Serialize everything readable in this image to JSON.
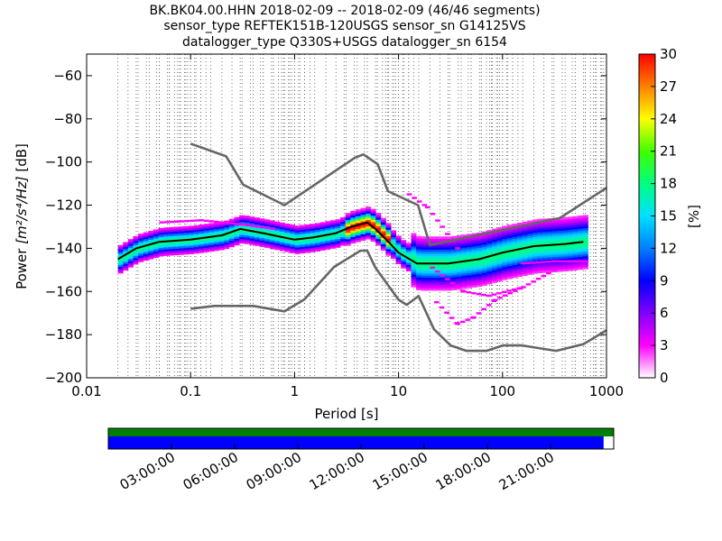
{
  "title_lines": [
    "BK.BK04.00.HHN   2018-02-09 -- 2018-02-09  (46/46 segments)",
    "sensor_type REFTEK151B-120USGS sensor_sn G14125VS",
    "datalogger_type Q330S+USGS datalogger_sn 6154"
  ],
  "chart_data": {
    "type": "heatmap",
    "xlabel": "Period [s]",
    "ylabel_prefix": "Power ",
    "ylabel_unit": "[m²/s⁴/Hz]",
    "ylabel_suffix": " [dB]",
    "x_scale": "log",
    "xlim": [
      0.01,
      1000
    ],
    "ylim": [
      -200,
      -50
    ],
    "x_ticks": [
      0.01,
      0.1,
      1,
      10,
      100,
      1000
    ],
    "x_tick_labels": [
      "0.01",
      "0.1",
      "1",
      "10",
      "100",
      "1000"
    ],
    "y_ticks": [
      -200,
      -180,
      -160,
      -140,
      -120,
      -100,
      -80,
      -60
    ],
    "y_tick_labels": [
      "−200",
      "−180",
      "−160",
      "−140",
      "−120",
      "−100",
      "−80",
      "−60"
    ],
    "grid": "dotted vertical",
    "colorbar": {
      "label": "[%]",
      "range": [
        0,
        30
      ],
      "ticks": [
        0,
        3,
        6,
        9,
        12,
        15,
        18,
        21,
        24,
        27,
        30
      ],
      "tick_labels": [
        "0",
        "3",
        "6",
        "9",
        "12",
        "15",
        "18",
        "21",
        "24",
        "27",
        "30"
      ],
      "colormap": [
        "#ffffff",
        "#ff00ff",
        "#8000ff",
        "#0000ff",
        "#0080ff",
        "#00e0ff",
        "#00ff80",
        "#40ff00",
        "#ffff00",
        "#ff8000",
        "#ff0000"
      ]
    },
    "series": [
      {
        "role": "new high noise model",
        "color": "#666666",
        "points": [
          [
            0.1,
            -91.5
          ],
          [
            0.22,
            -97.4
          ],
          [
            0.32,
            -110.5
          ],
          [
            0.8,
            -120
          ],
          [
            3.8,
            -98
          ],
          [
            4.6,
            -96.5
          ],
          [
            6.3,
            -101
          ],
          [
            7.9,
            -113.5
          ],
          [
            15.4,
            -120
          ],
          [
            20,
            -138.5
          ],
          [
            354.8,
            -126
          ],
          [
            1000,
            -112
          ]
        ]
      },
      {
        "role": "new low noise model",
        "color": "#666666",
        "points": [
          [
            0.1,
            -168
          ],
          [
            0.17,
            -166.7
          ],
          [
            0.4,
            -166.7
          ],
          [
            0.8,
            -169.2
          ],
          [
            1.24,
            -163.7
          ],
          [
            2.4,
            -148.6
          ],
          [
            4.3,
            -141.1
          ],
          [
            5,
            -141.1
          ],
          [
            6,
            -149
          ],
          [
            10,
            -163.8
          ],
          [
            12,
            -166.2
          ],
          [
            15.6,
            -162.1
          ],
          [
            21.9,
            -177.5
          ],
          [
            31.6,
            -185
          ],
          [
            45,
            -187.5
          ],
          [
            70,
            -187.5
          ],
          [
            101,
            -185
          ],
          [
            154,
            -185
          ],
          [
            328,
            -187.5
          ],
          [
            600,
            -184.4
          ],
          [
            1000,
            -178
          ]
        ]
      },
      {
        "role": "mean",
        "color": "#000000",
        "points": [
          [
            0.02,
            -145
          ],
          [
            0.03,
            -140
          ],
          [
            0.05,
            -137
          ],
          [
            0.1,
            -136
          ],
          [
            0.2,
            -134
          ],
          [
            0.3,
            -131
          ],
          [
            0.5,
            -133
          ],
          [
            1,
            -136
          ],
          [
            1.5,
            -135
          ],
          [
            2.5,
            -133
          ],
          [
            3.5,
            -130
          ],
          [
            5,
            -128
          ],
          [
            6,
            -131
          ],
          [
            8,
            -137
          ],
          [
            10,
            -142
          ],
          [
            15,
            -147
          ],
          [
            30,
            -147
          ],
          [
            60,
            -145
          ],
          [
            100,
            -142
          ],
          [
            200,
            -139
          ],
          [
            400,
            -138
          ],
          [
            600,
            -137
          ]
        ]
      }
    ]
  },
  "timeline": {
    "tick_labels": [
      "03:00:00",
      "06:00:00",
      "09:00:00",
      "12:00:00",
      "15:00:00",
      "18:00:00",
      "21:00:00"
    ],
    "green_coverage": 1.0,
    "blue_coverage": 0.98,
    "colors": {
      "green": "#008000",
      "blue": "#0000ff"
    }
  }
}
